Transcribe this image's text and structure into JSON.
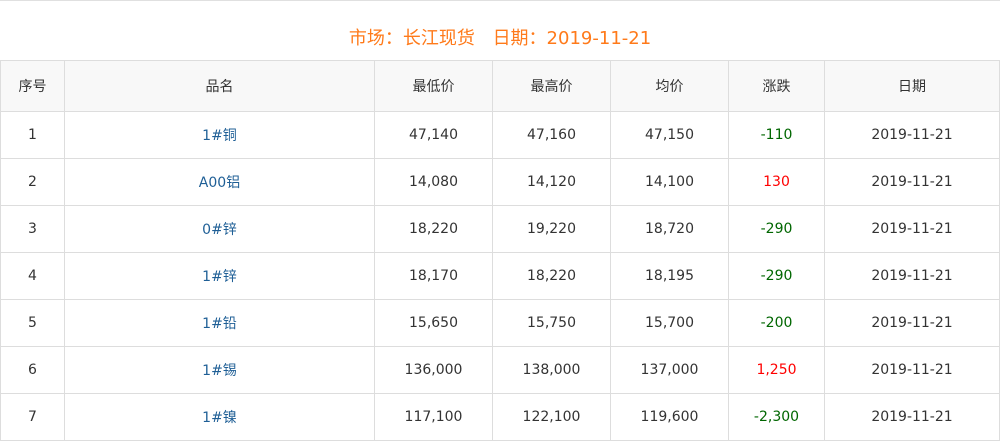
{
  "header": {
    "market_label": "市场：长江现货",
    "date_label": "日期：2019-11-21"
  },
  "table": {
    "columns": [
      "序号",
      "品名",
      "最低价",
      "最高价",
      "均价",
      "涨跌",
      "日期"
    ],
    "rows": [
      {
        "no": "1",
        "name": "1#铜",
        "low": "47,140",
        "high": "47,160",
        "avg": "47,150",
        "change": "-110",
        "dir": "down",
        "date": "2019-11-21"
      },
      {
        "no": "2",
        "name": "A00铝",
        "low": "14,080",
        "high": "14,120",
        "avg": "14,100",
        "change": "130",
        "dir": "up",
        "date": "2019-11-21"
      },
      {
        "no": "3",
        "name": "0#锌",
        "low": "18,220",
        "high": "19,220",
        "avg": "18,720",
        "change": "-290",
        "dir": "down",
        "date": "2019-11-21"
      },
      {
        "no": "4",
        "name": "1#锌",
        "low": "18,170",
        "high": "18,220",
        "avg": "18,195",
        "change": "-290",
        "dir": "down",
        "date": "2019-11-21"
      },
      {
        "no": "5",
        "name": "1#铅",
        "low": "15,650",
        "high": "15,750",
        "avg": "15,700",
        "change": "-200",
        "dir": "down",
        "date": "2019-11-21"
      },
      {
        "no": "6",
        "name": "1#锡",
        "low": "136,000",
        "high": "138,000",
        "avg": "137,000",
        "change": "1,250",
        "dir": "up",
        "date": "2019-11-21"
      },
      {
        "no": "7",
        "name": "1#镍",
        "low": "117,100",
        "high": "122,100",
        "avg": "119,600",
        "change": "-2,300",
        "dir": "down",
        "date": "2019-11-21"
      }
    ]
  },
  "colors": {
    "title": "#ff7a1a",
    "up": "#ff0000",
    "down": "#006600",
    "name_link": "#1f5f96"
  }
}
